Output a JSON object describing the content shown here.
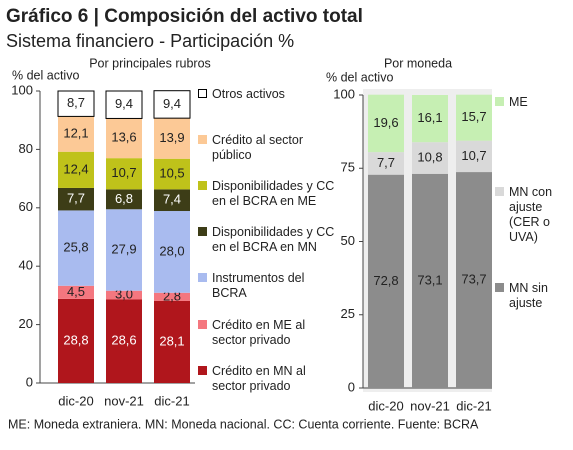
{
  "title": "Gráfico 6 | Composición del activo total",
  "subtitle": "Sistema financiero - Participación %",
  "note": "ME: Moneda extraniera. MN: Moneda nacional. CC: Cuenta corriente. Fuente: BCRA",
  "chart_data": [
    {
      "type": "stacked-bar",
      "title": "Por principales rubros",
      "y_label": "% del activo",
      "categories": [
        "dic-20",
        "nov-21",
        "dic-21"
      ],
      "ylim": [
        0,
        100
      ],
      "yticks": [
        0,
        20,
        40,
        60,
        80,
        100
      ],
      "series": [
        {
          "name": "Crédito en MN al sector privado",
          "color": "#b0161c",
          "values": [
            28.8,
            28.6,
            28.1
          ],
          "value_labels": [
            "28,8",
            "28,6",
            "28,1"
          ]
        },
        {
          "name": "Crédito en ME al sector privado",
          "color": "#f4777f",
          "values": [
            4.5,
            3.0,
            2.8
          ],
          "value_labels": [
            "4,5",
            "3,0",
            "2,8"
          ]
        },
        {
          "name": "Instrumentos del BCRA",
          "color": "#a9bbef",
          "values": [
            25.8,
            27.9,
            28.0
          ],
          "value_labels": [
            "25,8",
            "27,9",
            "28,0"
          ]
        },
        {
          "name": "Disponibilidades y CC en el BCRA en MN",
          "color": "#3d3d17",
          "values": [
            7.7,
            6.8,
            7.4
          ],
          "value_labels": [
            "7,7",
            "6,8",
            "7,4"
          ]
        },
        {
          "name": "Disponibilidades y CC en el BCRA en ME",
          "color": "#bfc21a",
          "values": [
            12.4,
            10.7,
            10.5
          ],
          "value_labels": [
            "12,4",
            "10,7",
            "10,5"
          ]
        },
        {
          "name": "Crédito al sector público",
          "color": "#fcc996",
          "values": [
            12.1,
            13.6,
            13.9
          ],
          "value_labels": [
            "12,1",
            "13,6",
            "13,9"
          ]
        },
        {
          "name": "Otros activos",
          "color": "#ffffff",
          "values": [
            8.7,
            9.4,
            9.4
          ],
          "value_labels": [
            "8,7",
            "9,4",
            "9,4"
          ]
        }
      ]
    },
    {
      "type": "stacked-bar",
      "title": "Por moneda",
      "y_label": "% del activo",
      "categories": [
        "dic-20",
        "nov-21",
        "dic-21"
      ],
      "ylim": [
        0,
        100
      ],
      "yticks": [
        0,
        25,
        50,
        75,
        100
      ],
      "series": [
        {
          "name": "MN sin ajuste",
          "color": "#8c8c8c",
          "values": [
            72.8,
            73.1,
            73.7
          ],
          "value_labels": [
            "72,8",
            "73,1",
            "73,7"
          ]
        },
        {
          "name": "MN con ajuste (CER o UVA)",
          "color": "#d9d9d9",
          "values": [
            7.7,
            10.8,
            10.7
          ],
          "value_labels": [
            "7,7",
            "10,8",
            "10,7"
          ]
        },
        {
          "name": "ME",
          "color": "#c6efb3",
          "values": [
            19.6,
            16.1,
            15.7
          ],
          "value_labels": [
            "19,6",
            "16,1",
            "15,7"
          ]
        }
      ]
    }
  ]
}
